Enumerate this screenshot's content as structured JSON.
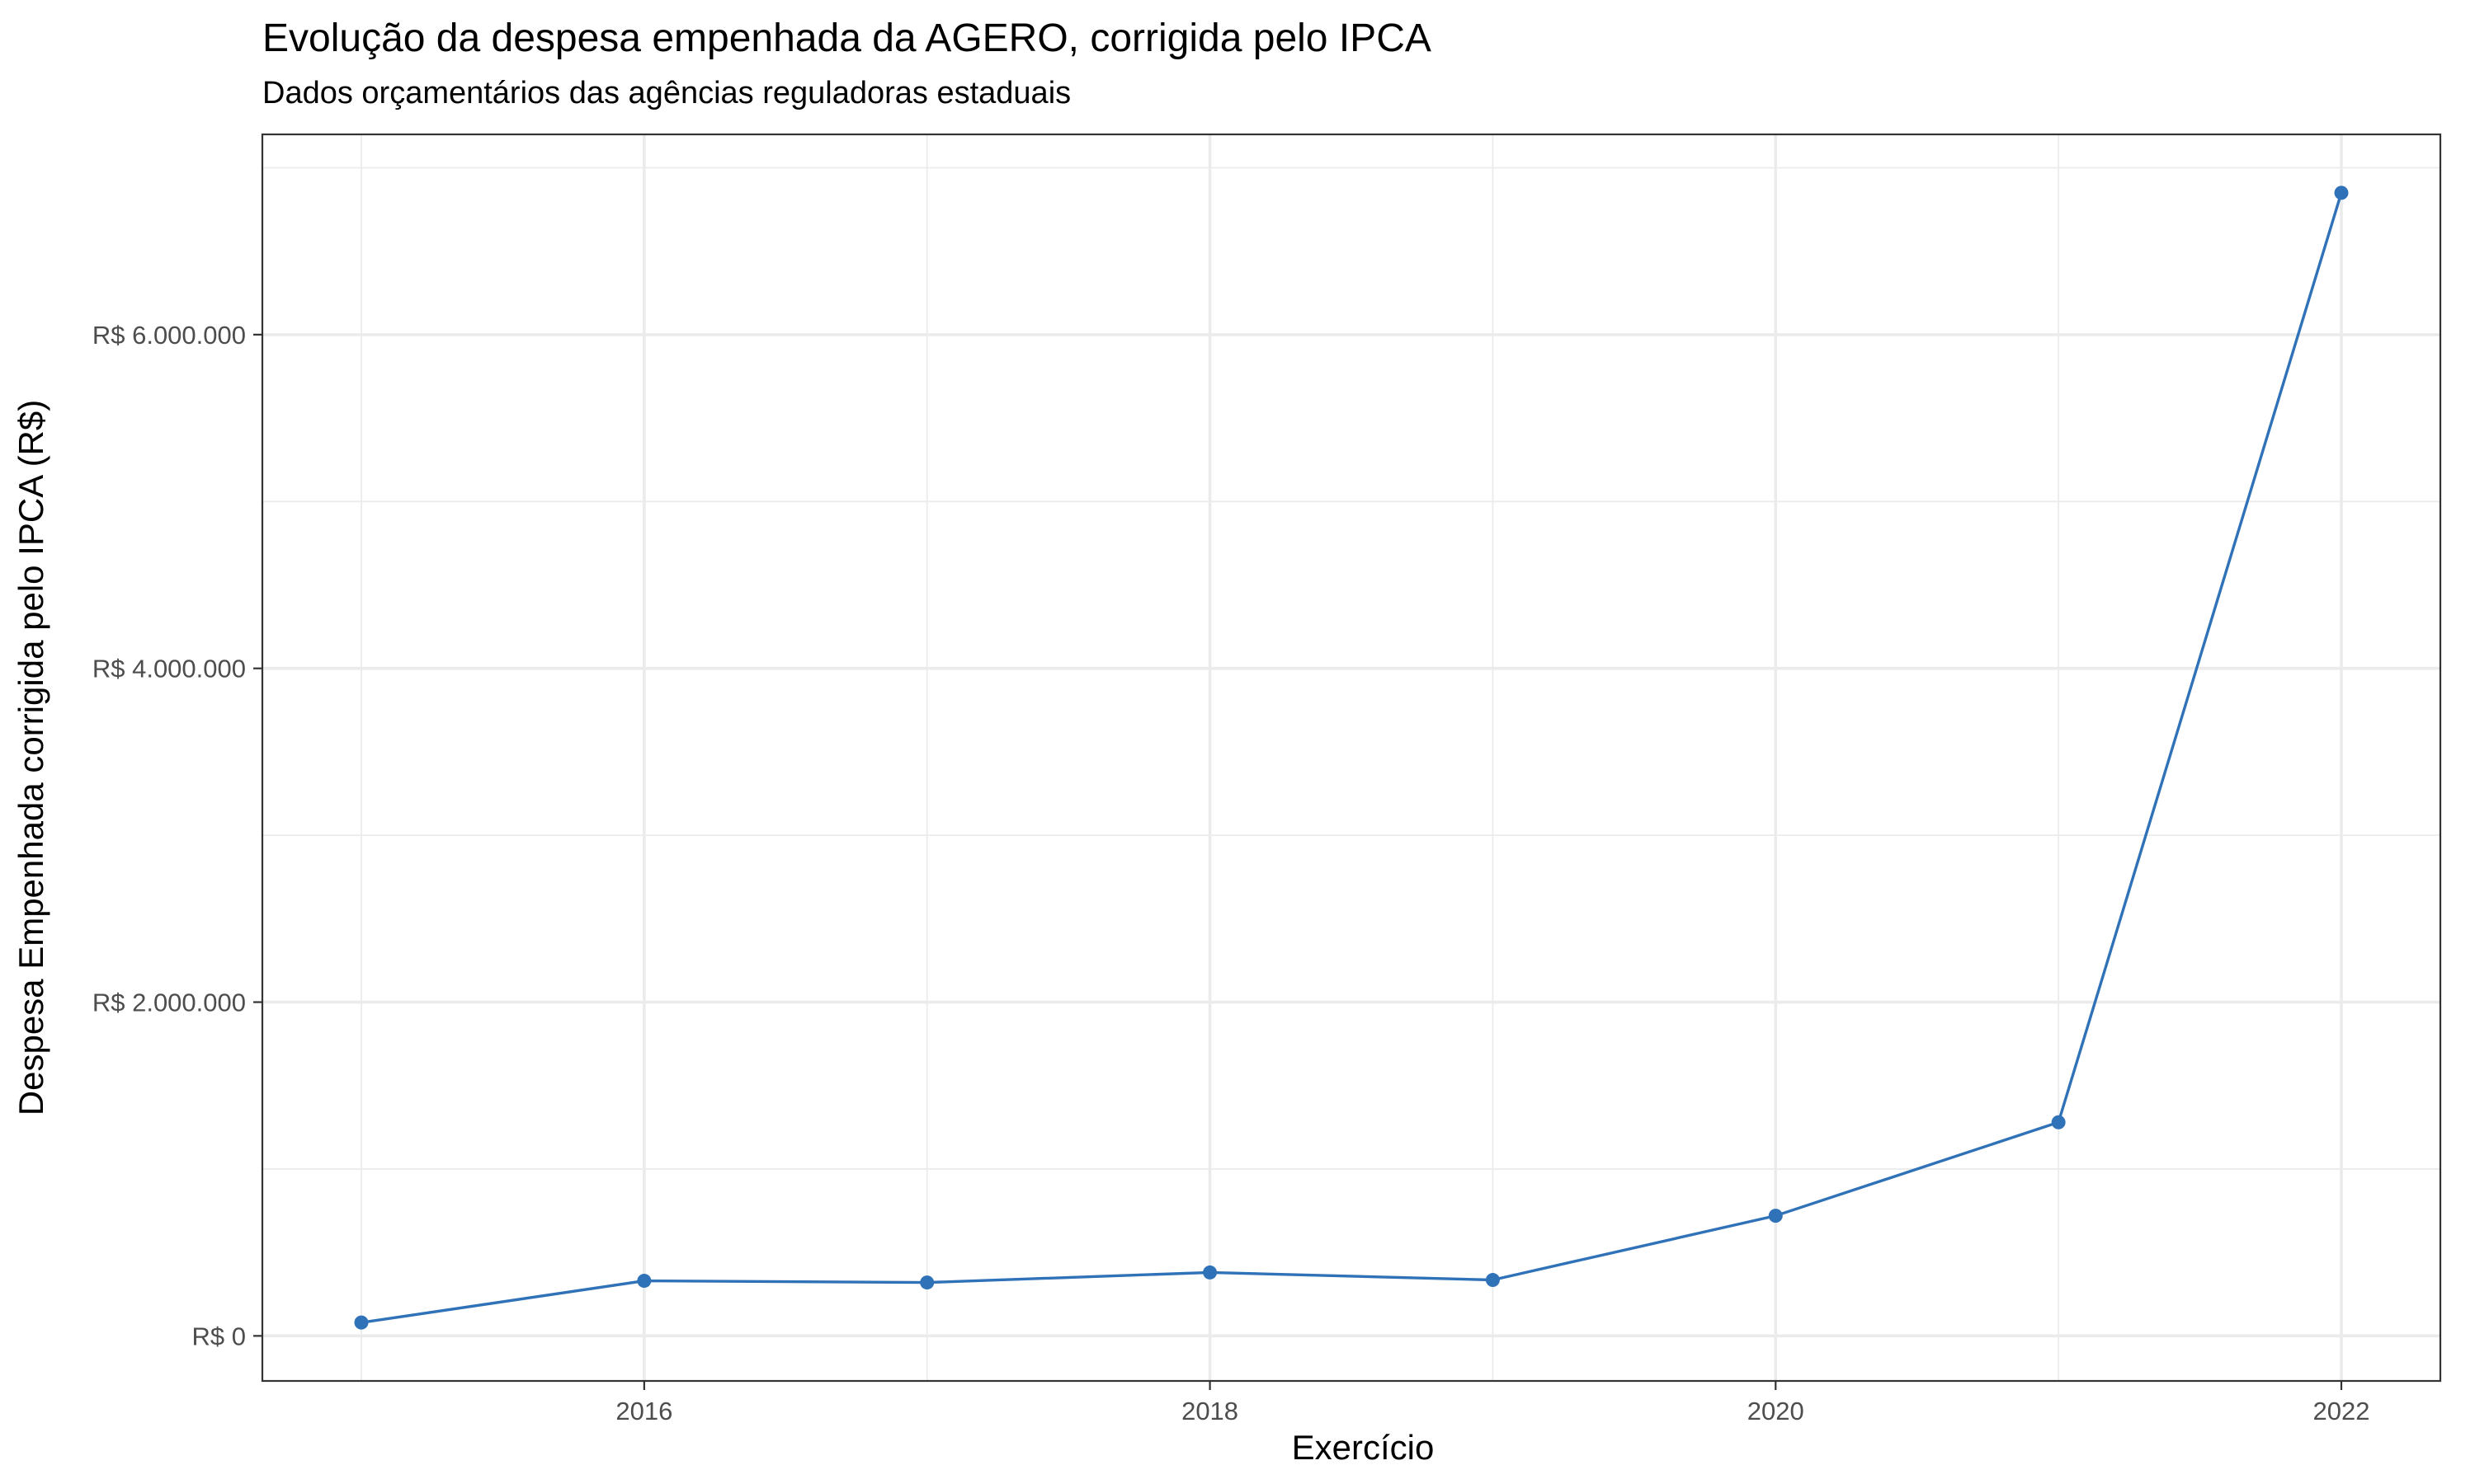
{
  "chart_data": {
    "type": "line",
    "title": "Evolução da despesa empenhada da AGERO, corrigida pelo IPCA",
    "subtitle": "Dados orçamentários das agências reguladoras estaduais",
    "xlabel": "Exercício",
    "ylabel": "Despesa Empenhada corrigida pelo IPCA (R$)",
    "x": [
      2015,
      2016,
      2017,
      2018,
      2019,
      2020,
      2021,
      2022
    ],
    "series": [
      {
        "values": [
          80000,
          330000,
          320000,
          380000,
          335000,
          720000,
          1280000,
          6850000
        ],
        "color": "#3072b8"
      }
    ],
    "xlim": [
      2014.65,
      2022.35
    ],
    "ylim": [
      -270000,
      7200000
    ],
    "x_ticks": [
      2016,
      2018,
      2020,
      2022
    ],
    "x_tick_labels": [
      "2016",
      "2018",
      "2020",
      "2022"
    ],
    "y_ticks": [
      0,
      2000000,
      4000000,
      6000000
    ],
    "y_tick_labels": [
      "R$ 0",
      "R$ 2.000.000",
      "R$ 4.000.000",
      "R$ 6.000.000"
    ],
    "grid": true,
    "legend": "none"
  }
}
